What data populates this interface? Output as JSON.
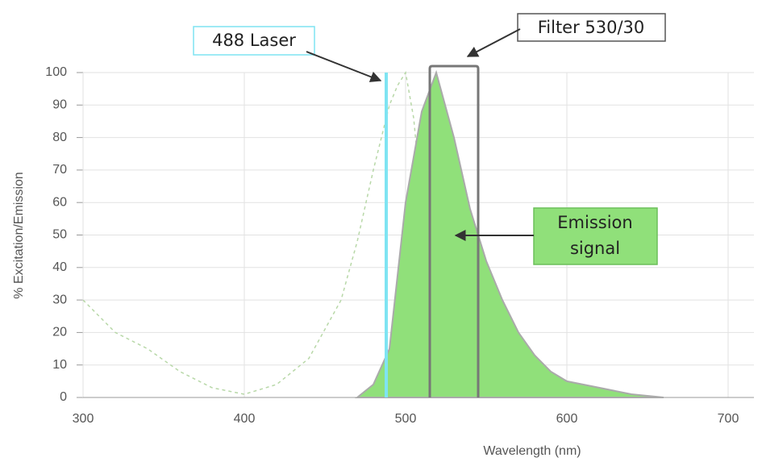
{
  "chart_data": {
    "type": "area",
    "xlabel": "Wavelength (nm)",
    "ylabel": "% Excitation/Emission",
    "xlim": [
      300,
      716
    ],
    "ylim": [
      0,
      100
    ],
    "xticks": [
      300,
      400,
      500,
      600,
      700
    ],
    "yticks": [
      0,
      10,
      20,
      30,
      40,
      50,
      60,
      70,
      80,
      90,
      100
    ],
    "grid": true,
    "series": [
      {
        "style": "dashed",
        "color": "#b8d8a8",
        "x": [
          300,
          320,
          340,
          360,
          380,
          400,
          420,
          440,
          460,
          470,
          480,
          490,
          495,
          500,
          505,
          510,
          515,
          520
        ],
        "values": [
          30,
          20,
          15,
          8,
          3,
          1,
          4,
          12,
          30,
          48,
          70,
          90,
          96,
          100,
          86,
          60,
          30,
          0
        ]
      },
      {
        "style": "filled",
        "color": "#90e07a",
        "edge": "#aaaaaa",
        "x": [
          470,
          480,
          490,
          500,
          510,
          519,
          530,
          540,
          550,
          560,
          570,
          580,
          590,
          600,
          620,
          640,
          660
        ],
        "values": [
          0,
          4,
          15,
          60,
          88,
          100,
          80,
          58,
          42,
          30,
          20,
          13,
          8,
          5,
          3,
          1,
          0
        ]
      }
    ],
    "laser": {
      "label": "488 Laser",
      "x": 488,
      "color": "#7fe4f2"
    },
    "filter": {
      "label": "Filter 530/30",
      "x": [
        515,
        545
      ],
      "top": 102,
      "color": "#777777"
    },
    "emission_label": [
      "Emission",
      "signal"
    ]
  }
}
